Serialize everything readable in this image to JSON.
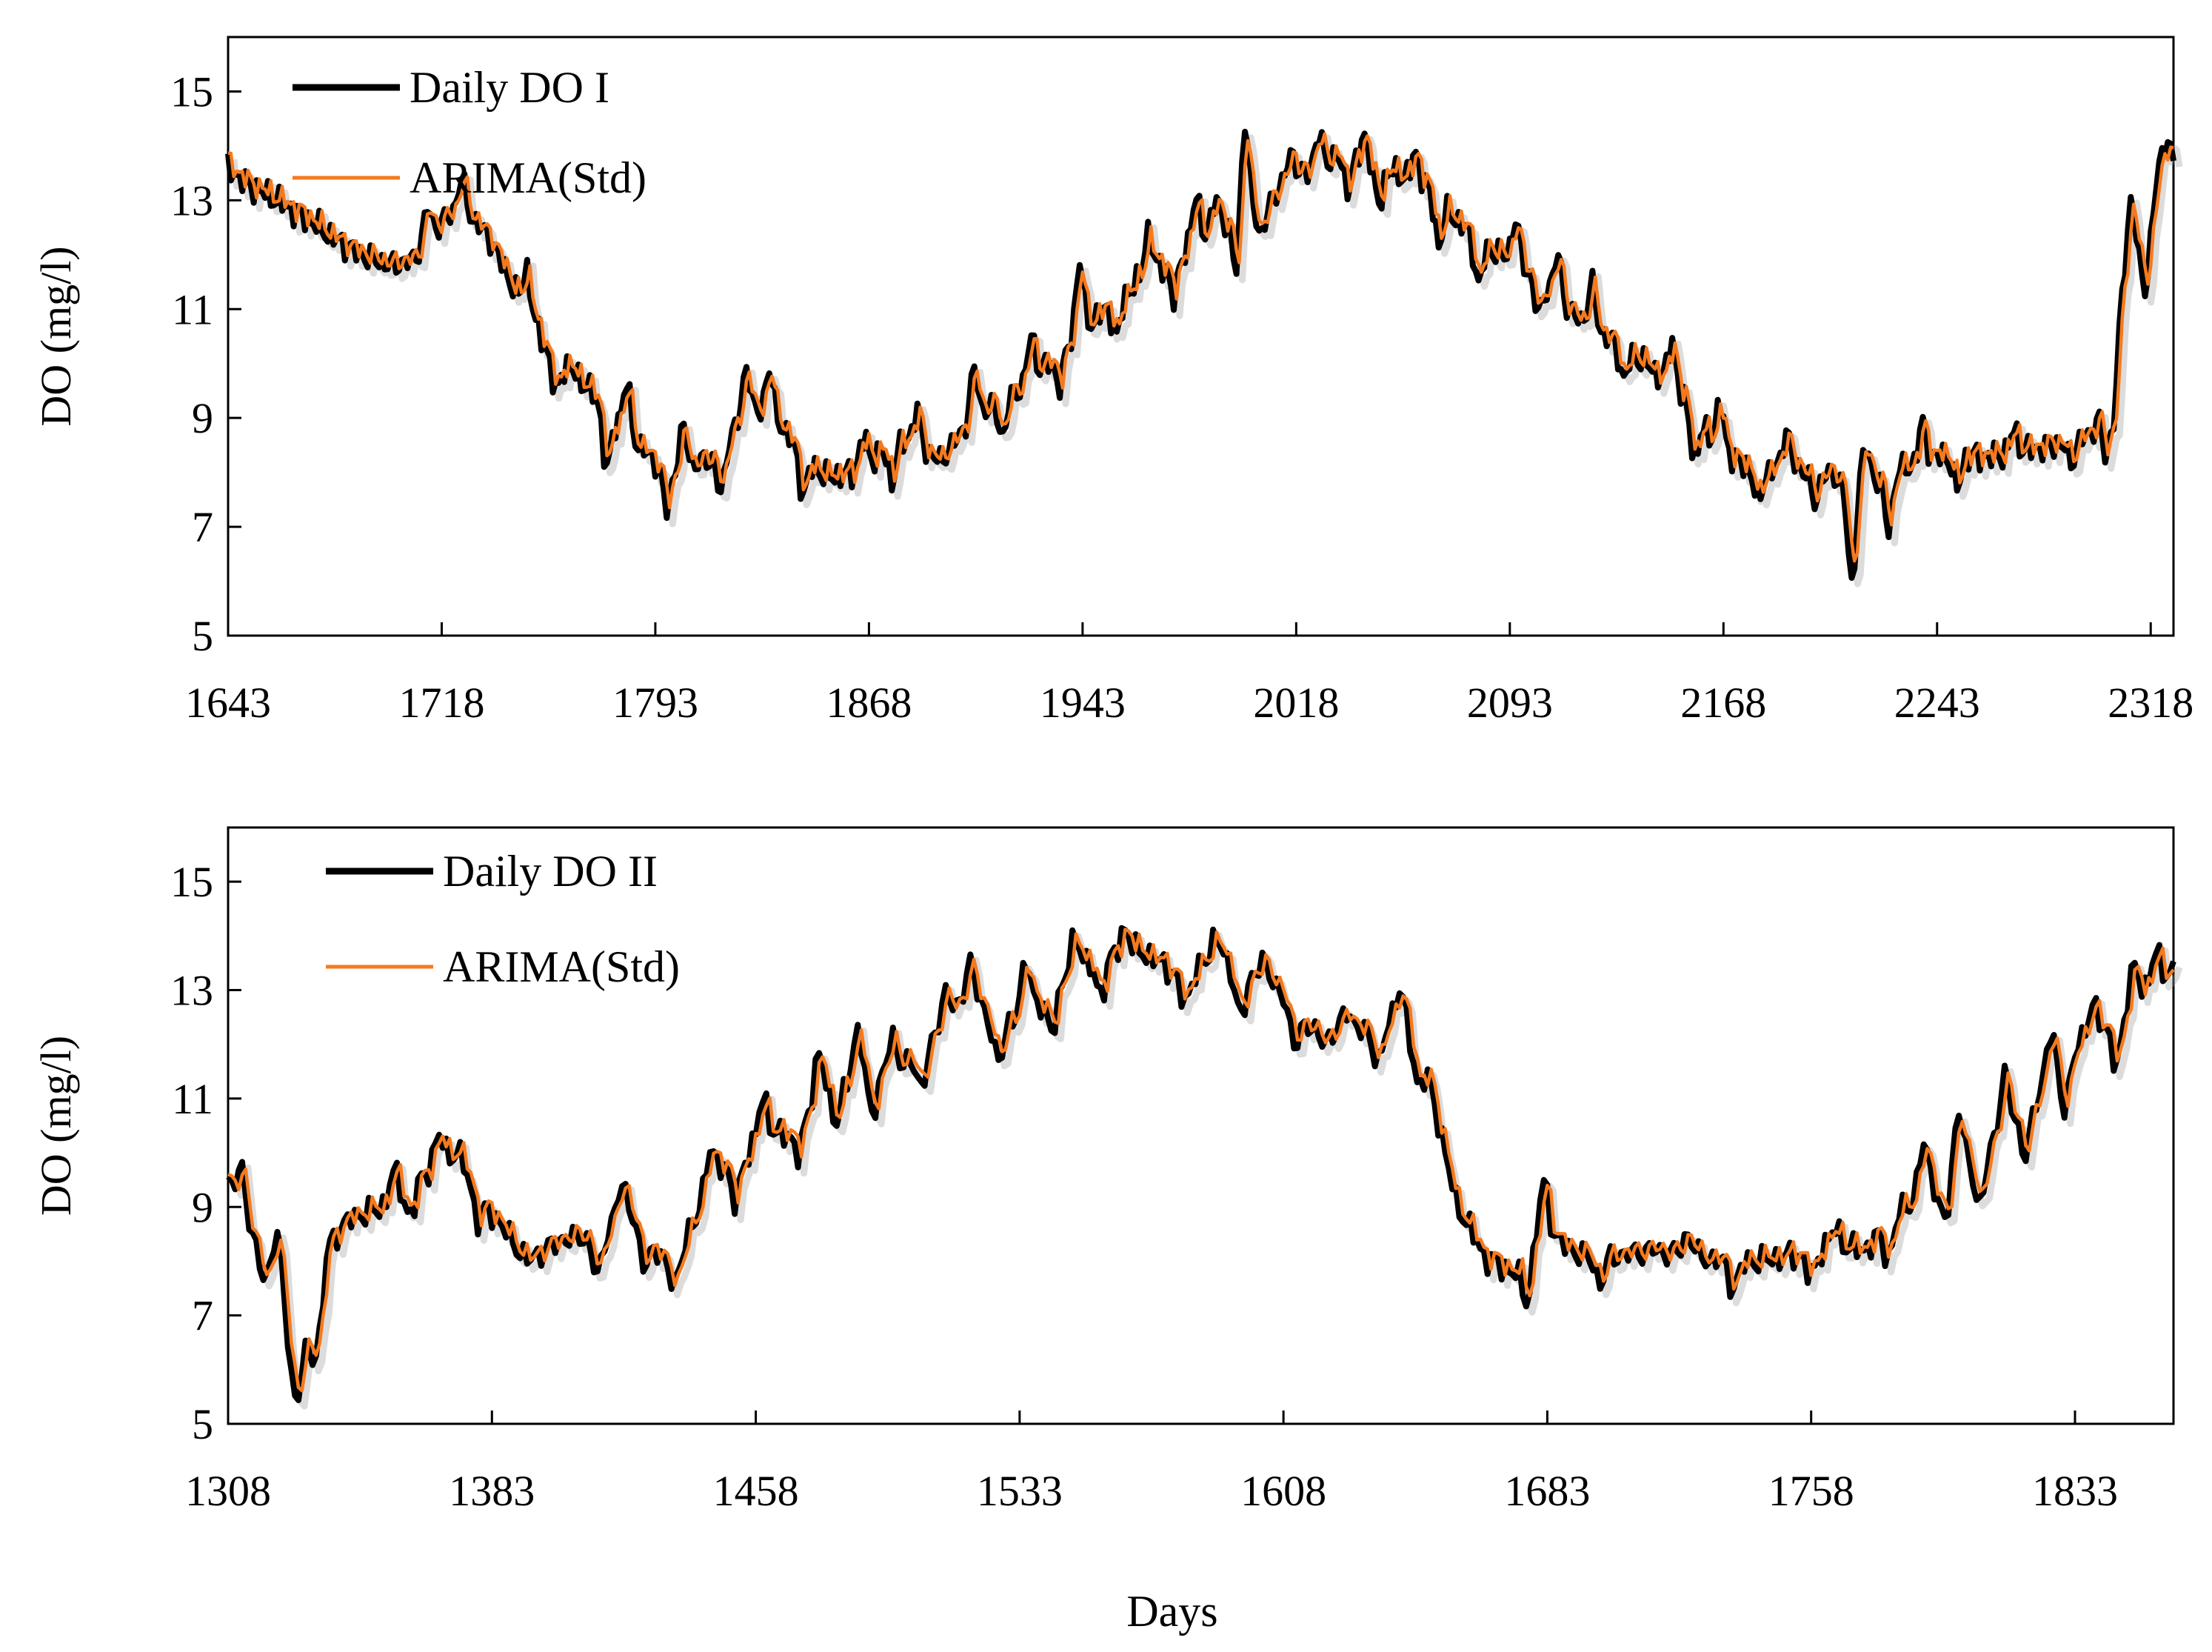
{
  "figure": {
    "shared_xlabel": "Days"
  },
  "colors": {
    "observed": "#000000",
    "model": "#f47a1f",
    "axis": "#000000"
  },
  "chart_data": [
    {
      "type": "line",
      "panel": "top",
      "xlabel": "",
      "ylabel": "DO (mg/l)",
      "xlim": [
        1643,
        2326
      ],
      "ylim": [
        5,
        16
      ],
      "xticks": [
        1643,
        1718,
        1793,
        1868,
        1943,
        2018,
        2093,
        2168,
        2243,
        2318
      ],
      "yticks": [
        5,
        7,
        9,
        11,
        13,
        15
      ],
      "legend_position": "top-left",
      "series": [
        {
          "name": "Daily DO I",
          "style": "observed",
          "keypoints": [
            [
              1643,
              13.6
            ],
            [
              1650,
              13.3
            ],
            [
              1660,
              13.0
            ],
            [
              1670,
              12.7
            ],
            [
              1680,
              12.3
            ],
            [
              1690,
              12.0
            ],
            [
              1700,
              11.8
            ],
            [
              1708,
              11.9
            ],
            [
              1718,
              12.6
            ],
            [
              1725,
              12.9
            ],
            [
              1735,
              12.3
            ],
            [
              1745,
              11.2
            ],
            [
              1755,
              10.3
            ],
            [
              1765,
              9.8
            ],
            [
              1775,
              9.2
            ],
            [
              1785,
              8.6
            ],
            [
              1793,
              8.2
            ],
            [
              1803,
              8.0
            ],
            [
              1813,
              8.3
            ],
            [
              1823,
              8.9
            ],
            [
              1833,
              9.2
            ],
            [
              1843,
              8.4
            ],
            [
              1853,
              7.9
            ],
            [
              1863,
              8.0
            ],
            [
              1873,
              8.4
            ],
            [
              1883,
              8.6
            ],
            [
              1893,
              8.2
            ],
            [
              1903,
              8.9
            ],
            [
              1913,
              9.3
            ],
            [
              1923,
              9.6
            ],
            [
              1933,
              10.1
            ],
            [
              1943,
              10.6
            ],
            [
              1953,
              11.1
            ],
            [
              1963,
              11.5
            ],
            [
              1973,
              11.9
            ],
            [
              1983,
              12.2
            ],
            [
              1993,
              12.5
            ],
            [
              2003,
              12.9
            ],
            [
              2013,
              13.2
            ],
            [
              2023,
              13.6
            ],
            [
              2033,
              13.8
            ],
            [
              2043,
              13.6
            ],
            [
              2053,
              13.5
            ],
            [
              2063,
              13.3
            ],
            [
              2073,
              12.7
            ],
            [
              2083,
              12.2
            ],
            [
              2093,
              11.9
            ],
            [
              2103,
              11.6
            ],
            [
              2113,
              11.0
            ],
            [
              2123,
              10.6
            ],
            [
              2133,
              10.3
            ],
            [
              2143,
              9.9
            ],
            [
              2153,
              9.4
            ],
            [
              2163,
              8.7
            ],
            [
              2173,
              8.2
            ],
            [
              2183,
              8.0
            ],
            [
              2193,
              8.1
            ],
            [
              2203,
              8.0
            ],
            [
              2213,
              7.8
            ],
            [
              2223,
              7.9
            ],
            [
              2233,
              8.1
            ],
            [
              2243,
              8.3
            ],
            [
              2253,
              8.3
            ],
            [
              2263,
              8.3
            ],
            [
              2273,
              8.4
            ],
            [
              2283,
              8.5
            ],
            [
              2293,
              8.6
            ],
            [
              2303,
              8.8
            ],
            [
              2305,
              9.0
            ],
            [
              2308,
              11.2
            ],
            [
              2313,
              12.0
            ],
            [
              2318,
              12.5
            ],
            [
              2326,
              13.2
            ]
          ],
          "spikes": [
            [
              1713,
              0.6
            ],
            [
              1725,
              0.5
            ],
            [
              1748,
              0.8
            ],
            [
              1758,
              -0.7
            ],
            [
              1776,
              -1.1
            ],
            [
              1783,
              0.9
            ],
            [
              1797,
              -0.8
            ],
            [
              1803,
              0.8
            ],
            [
              1816,
              -0.9
            ],
            [
              1825,
              1.0
            ],
            [
              1833,
              0.7
            ],
            [
              1845,
              -0.7
            ],
            [
              1866,
              0.5
            ],
            [
              1876,
              -0.6
            ],
            [
              1885,
              0.6
            ],
            [
              1905,
              0.9
            ],
            [
              1915,
              -0.7
            ],
            [
              1925,
              0.8
            ],
            [
              1935,
              -0.6
            ],
            [
              1942,
              1.3
            ],
            [
              1955,
              -0.7
            ],
            [
              1966,
              0.8
            ],
            [
              1975,
              -0.8
            ],
            [
              1983,
              0.9
            ],
            [
              1990,
              0.7
            ],
            [
              1997,
              -0.9
            ],
            [
              2000,
              1.6
            ],
            [
              2006,
              -0.7
            ],
            [
              2016,
              0.6
            ],
            [
              2026,
              0.5
            ],
            [
              2036,
              -0.5
            ],
            [
              2042,
              0.6
            ],
            [
              2047,
              -0.6
            ],
            [
              2060,
              0.5
            ],
            [
              2068,
              -0.8
            ],
            [
              2082,
              -0.8
            ],
            [
              2095,
              0.8
            ],
            [
              2103,
              -0.7
            ],
            [
              2110,
              0.8
            ],
            [
              2122,
              0.8
            ],
            [
              2133,
              -0.6
            ],
            [
              2150,
              0.9
            ],
            [
              2158,
              -0.8
            ],
            [
              2167,
              0.7
            ],
            [
              2180,
              -0.6
            ],
            [
              2190,
              0.7
            ],
            [
              2200,
              -0.6
            ],
            [
              2213,
              -1.9
            ],
            [
              2218,
              0.6
            ],
            [
              2226,
              -1.0
            ],
            [
              2238,
              0.7
            ],
            [
              2250,
              -0.6
            ],
            [
              2270,
              0.4
            ],
            [
              2290,
              -0.4
            ],
            [
              2300,
              0.4
            ],
            [
              2302,
              -0.6
            ],
            [
              2311,
              1.3
            ],
            [
              2316,
              -0.9
            ],
            [
              2321,
              0.8
            ],
            [
              2324,
              1.1
            ]
          ]
        },
        {
          "name": "ARIMA(Std)",
          "style": "model",
          "lag_days": 1,
          "damping": 0.85,
          "offset": 0.05
        }
      ]
    },
    {
      "type": "line",
      "panel": "bottom",
      "xlabel": "Days",
      "ylabel": "DO (mg/l)",
      "xlim": [
        1308,
        1861
      ],
      "ylim": [
        5,
        16
      ],
      "xticks": [
        1308,
        1383,
        1458,
        1533,
        1608,
        1683,
        1758,
        1833
      ],
      "yticks": [
        5,
        7,
        9,
        11,
        13,
        15
      ],
      "legend_position": "top-left",
      "series": [
        {
          "name": "Daily DO II",
          "style": "observed",
          "keypoints": [
            [
              1308,
              9.5
            ],
            [
              1313,
              8.6
            ],
            [
              1318,
              8.2
            ],
            [
              1323,
              7.2
            ],
            [
              1328,
              6.2
            ],
            [
              1332,
              6.5
            ],
            [
              1336,
              8.3
            ],
            [
              1343,
              8.8
            ],
            [
              1353,
              9.0
            ],
            [
              1363,
              9.6
            ],
            [
              1373,
              10.0
            ],
            [
              1383,
              8.9
            ],
            [
              1393,
              8.0
            ],
            [
              1403,
              8.4
            ],
            [
              1413,
              8.5
            ],
            [
              1423,
              8.9
            ],
            [
              1430,
              8.2
            ],
            [
              1435,
              7.6
            ],
            [
              1440,
              8.7
            ],
            [
              1448,
              9.8
            ],
            [
              1458,
              10.0
            ],
            [
              1468,
              10.5
            ],
            [
              1478,
              11.1
            ],
            [
              1488,
              11.4
            ],
            [
              1498,
              11.5
            ],
            [
              1508,
              12.0
            ],
            [
              1518,
              12.8
            ],
            [
              1528,
              12.4
            ],
            [
              1538,
              12.7
            ],
            [
              1548,
              13.3
            ],
            [
              1558,
              13.6
            ],
            [
              1568,
              13.7
            ],
            [
              1578,
              13.3
            ],
            [
              1588,
              13.5
            ],
            [
              1598,
              13.2
            ],
            [
              1608,
              13.0
            ],
            [
              1618,
              12.1
            ],
            [
              1628,
              12.2
            ],
            [
              1638,
              12.4
            ],
            [
              1645,
              12.2
            ],
            [
              1650,
              11.2
            ],
            [
              1657,
              9.1
            ],
            [
              1665,
              8.1
            ],
            [
              1673,
              7.8
            ],
            [
              1683,
              8.5
            ],
            [
              1693,
              8.1
            ],
            [
              1703,
              8.1
            ],
            [
              1713,
              8.2
            ],
            [
              1723,
              8.1
            ],
            [
              1733,
              8.0
            ],
            [
              1743,
              8.0
            ],
            [
              1753,
              8.1
            ],
            [
              1763,
              8.3
            ],
            [
              1773,
              8.2
            ],
            [
              1783,
              8.9
            ],
            [
              1793,
              9.4
            ],
            [
              1803,
              9.7
            ],
            [
              1813,
              10.3
            ],
            [
              1823,
              11.0
            ],
            [
              1833,
              11.9
            ],
            [
              1843,
              12.3
            ],
            [
              1853,
              12.8
            ],
            [
              1861,
              13.3
            ]
          ],
          "spikes": [
            [
              1312,
              0.9
            ],
            [
              1318,
              -0.5
            ],
            [
              1322,
              1.1
            ],
            [
              1327,
              -0.9
            ],
            [
              1334,
              -0.8
            ],
            [
              1355,
              0.5
            ],
            [
              1360,
              -0.6
            ],
            [
              1368,
              0.5
            ],
            [
              1379,
              -0.6
            ],
            [
              1413,
              -0.8
            ],
            [
              1420,
              0.6
            ],
            [
              1426,
              -0.7
            ],
            [
              1445,
              0.6
            ],
            [
              1452,
              -0.8
            ],
            [
              1460,
              1.0
            ],
            [
              1470,
              -0.7
            ],
            [
              1476,
              0.8
            ],
            [
              1481,
              -0.6
            ],
            [
              1487,
              0.9
            ],
            [
              1491,
              -0.7
            ],
            [
              1497,
              0.6
            ],
            [
              1505,
              -0.6
            ],
            [
              1512,
              0.7
            ],
            [
              1519,
              0.8
            ],
            [
              1527,
              -0.8
            ],
            [
              1535,
              0.9
            ],
            [
              1542,
              -0.7
            ],
            [
              1549,
              0.7
            ],
            [
              1556,
              -0.6
            ],
            [
              1563,
              0.5
            ],
            [
              1580,
              -0.6
            ],
            [
              1589,
              0.6
            ],
            [
              1596,
              -0.7
            ],
            [
              1602,
              0.5
            ],
            [
              1611,
              -0.8
            ],
            [
              1626,
              0.5
            ],
            [
              1635,
              -0.7
            ],
            [
              1641,
              0.7
            ],
            [
              1646,
              -0.7
            ],
            [
              1677,
              -0.8
            ],
            [
              1682,
              1.0
            ],
            [
              1698,
              -0.5
            ],
            [
              1723,
              0.4
            ],
            [
              1736,
              -0.5
            ],
            [
              1758,
              -0.5
            ],
            [
              1765,
              0.3
            ],
            [
              1780,
              -0.6
            ],
            [
              1790,
              0.9
            ],
            [
              1796,
              -0.8
            ],
            [
              1800,
              1.2
            ],
            [
              1806,
              -0.8
            ],
            [
              1813,
              1.2
            ],
            [
              1819,
              -0.7
            ],
            [
              1826,
              1.0
            ],
            [
              1830,
              -0.8
            ],
            [
              1838,
              0.7
            ],
            [
              1845,
              -0.7
            ],
            [
              1850,
              0.9
            ],
            [
              1856,
              0.8
            ]
          ]
        },
        {
          "name": "ARIMA(Std)",
          "style": "model",
          "lag_days": 1,
          "damping": 0.85,
          "offset": 0.05
        }
      ]
    }
  ]
}
